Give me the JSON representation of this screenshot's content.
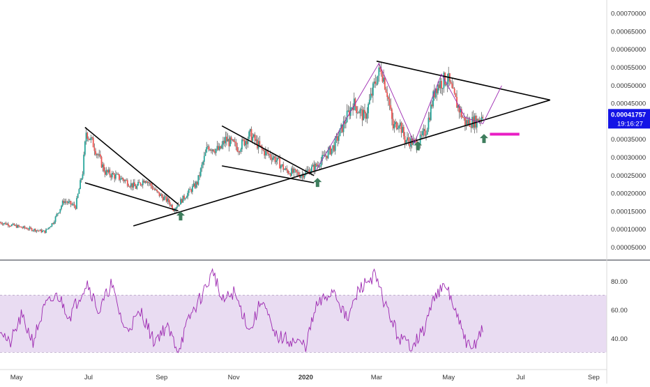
{
  "colors": {
    "up": "#26a69a",
    "down": "#ef5350",
    "wick": "#4d4d4d",
    "trendline": "#000000",
    "projection": "#9c27b0",
    "arrow": "#3e7d5d",
    "target": "#e91ec4",
    "rsi_line": "#9c27b0",
    "rsi_band": "#e9dcf2",
    "price_tag": "#1414e6",
    "axis_text": "#333333",
    "separator": "#2a2e39"
  },
  "icons": [
    "up-arrow-icon"
  ],
  "price_axis_labels": [
    "0.00070000",
    "0.00065000",
    "0.00060000",
    "0.00055000",
    "0.00050000",
    "0.00045000",
    "0.00035000",
    "0.00030000",
    "0.00025000",
    "0.00020000",
    "0.00015000",
    "0.00010000",
    "0.00005000"
  ],
  "price_tag": {
    "price": "0.00041757",
    "countdown": "19:16:27"
  },
  "rsi_axis_labels": [
    "80.00",
    "60.00",
    "40.00"
  ],
  "time_axis_labels": [
    "May",
    "Jul",
    "Sep",
    "Nov",
    "2020",
    "Mar",
    "May",
    "Jul",
    "Sep"
  ],
  "chart_data": [
    {
      "type": "candlestick",
      "title": "",
      "y_axis_side": "right",
      "ylim": [
        1.5e-05,
        0.000736
      ],
      "x_start": "2019-04-17",
      "x_end": "2020-09-12",
      "yticks": [
        0.0007,
        0.00065,
        0.0006,
        0.00055,
        0.0005,
        0.00045,
        0.00035,
        0.0003,
        0.00025,
        0.0002,
        0.00015,
        0.0001,
        5e-05
      ],
      "close_path": [
        [
          "2019-04-17",
          0.000118
        ],
        [
          "2019-05-05",
          0.000104
        ],
        [
          "2019-05-25",
          9.2e-05
        ],
        [
          "2019-06-01",
          0.000118
        ],
        [
          "2019-06-10",
          0.000178
        ],
        [
          "2019-06-20",
          0.000162
        ],
        [
          "2019-06-26",
          0.000258
        ],
        [
          "2019-06-29",
          0.00037
        ],
        [
          "2019-07-05",
          0.000335
        ],
        [
          "2019-07-15",
          0.000258
        ],
        [
          "2019-07-30",
          0.000238
        ],
        [
          "2019-08-10",
          0.000215
        ],
        [
          "2019-08-18",
          0.00024
        ],
        [
          "2019-08-28",
          0.0002
        ],
        [
          "2019-09-07",
          0.000175
        ],
        [
          "2019-09-11",
          0.000155
        ],
        [
          "2019-09-22",
          0.000195
        ],
        [
          "2019-10-01",
          0.000228
        ],
        [
          "2019-10-10",
          0.00033
        ],
        [
          "2019-10-20",
          0.000318
        ],
        [
          "2019-10-25",
          0.000348
        ],
        [
          "2019-11-05",
          0.000325
        ],
        [
          "2019-11-15",
          0.000362
        ],
        [
          "2019-11-25",
          0.000318
        ],
        [
          "2019-12-05",
          0.000298
        ],
        [
          "2019-12-15",
          0.000262
        ],
        [
          "2019-12-28",
          0.00025
        ],
        [
          "2020-01-10",
          0.000275
        ],
        [
          "2020-01-25",
          0.00033
        ],
        [
          "2020-02-10",
          0.00045
        ],
        [
          "2020-02-20",
          0.000408
        ],
        [
          "2020-03-01",
          0.00052
        ],
        [
          "2020-03-05",
          0.000545
        ],
        [
          "2020-03-10",
          0.00048
        ],
        [
          "2020-03-15",
          0.00038
        ],
        [
          "2020-03-20",
          0.0004
        ],
        [
          "2020-03-25",
          0.000348
        ],
        [
          "2020-04-05",
          0.000335
        ],
        [
          "2020-04-12",
          0.000375
        ],
        [
          "2020-04-20",
          0.000495
        ],
        [
          "2020-04-30",
          0.00052
        ],
        [
          "2020-05-05",
          0.00047
        ],
        [
          "2020-05-15",
          0.000395
        ],
        [
          "2020-05-25",
          0.0004
        ],
        [
          "2020-05-30",
          0.000418
        ]
      ],
      "annotations": {
        "trendlines": [
          {
            "from": [
              "2019-06-28",
              0.000228
            ],
            "to": [
              "2019-09-15",
              0.00015
            ]
          },
          {
            "from": [
              "2019-06-28",
              0.000382
            ],
            "to": [
              "2019-09-15",
              0.000168
            ]
          },
          {
            "from": [
              "2019-10-22",
              0.000275
            ],
            "to": [
              "2020-01-08",
              0.000228
            ]
          },
          {
            "from": [
              "2019-10-22",
              0.000386
            ],
            "to": [
              "2020-01-08",
              0.000248
            ]
          },
          {
            "from": [
              "2019-08-08",
              0.000108
            ],
            "to": [
              "2020-07-26",
              0.000458
            ]
          },
          {
            "from": [
              "2020-03-01",
              0.000566
            ],
            "to": [
              "2020-07-26",
              0.000458
            ]
          }
        ],
        "projection_path": [
          [
            "2020-01-10",
            0.000264
          ],
          [
            "2020-03-03",
            0.00056
          ],
          [
            "2020-04-02",
            0.000338
          ],
          [
            "2020-04-25",
            0.00053
          ],
          [
            "2020-05-15",
            0.00041
          ],
          [
            "2020-05-30",
            0.000392
          ],
          [
            "2020-06-15",
            0.000498
          ]
        ],
        "arrows": [
          [
            "2019-09-17",
            0.000135
          ],
          [
            "2020-01-11",
            0.000228
          ],
          [
            "2020-04-05",
            0.00033
          ],
          [
            "2020-05-31",
            0.00035
          ]
        ],
        "target": {
          "from": "2020-06-05",
          "to": "2020-06-30",
          "price": 0.000363
        }
      }
    },
    {
      "type": "line",
      "title": "",
      "ylim": [
        18,
        95
      ],
      "band": [
        30,
        70
      ],
      "yticks": [
        80,
        60,
        40
      ],
      "rsi_path": [
        [
          "2019-04-17",
          48
        ],
        [
          "2019-04-25",
          35
        ],
        [
          "2019-05-05",
          55
        ],
        [
          "2019-05-15",
          38
        ],
        [
          "2019-05-25",
          62
        ],
        [
          "2019-06-05",
          70
        ],
        [
          "2019-06-15",
          55
        ],
        [
          "2019-06-25",
          72
        ],
        [
          "2019-06-30",
          79
        ],
        [
          "2019-07-10",
          58
        ],
        [
          "2019-07-20",
          78
        ],
        [
          "2019-08-01",
          45
        ],
        [
          "2019-08-15",
          58
        ],
        [
          "2019-08-25",
          38
        ],
        [
          "2019-09-05",
          48
        ],
        [
          "2019-09-15",
          32
        ],
        [
          "2019-09-25",
          55
        ],
        [
          "2019-10-05",
          70
        ],
        [
          "2019-10-15",
          87
        ],
        [
          "2019-10-22",
          65
        ],
        [
          "2019-11-01",
          72
        ],
        [
          "2019-11-15",
          45
        ],
        [
          "2019-11-25",
          68
        ],
        [
          "2019-12-05",
          42
        ],
        [
          "2019-12-20",
          38
        ],
        [
          "2020-01-01",
          35
        ],
        [
          "2020-01-10",
          62
        ],
        [
          "2020-01-25",
          74
        ],
        [
          "2020-02-05",
          52
        ],
        [
          "2020-02-15",
          74
        ],
        [
          "2020-02-28",
          84
        ],
        [
          "2020-03-10",
          60
        ],
        [
          "2020-03-20",
          40
        ],
        [
          "2020-03-30",
          35
        ],
        [
          "2020-04-10",
          45
        ],
        [
          "2020-04-20",
          72
        ],
        [
          "2020-04-30",
          75
        ],
        [
          "2020-05-10",
          50
        ],
        [
          "2020-05-20",
          30
        ],
        [
          "2020-05-30",
          48
        ]
      ]
    }
  ]
}
